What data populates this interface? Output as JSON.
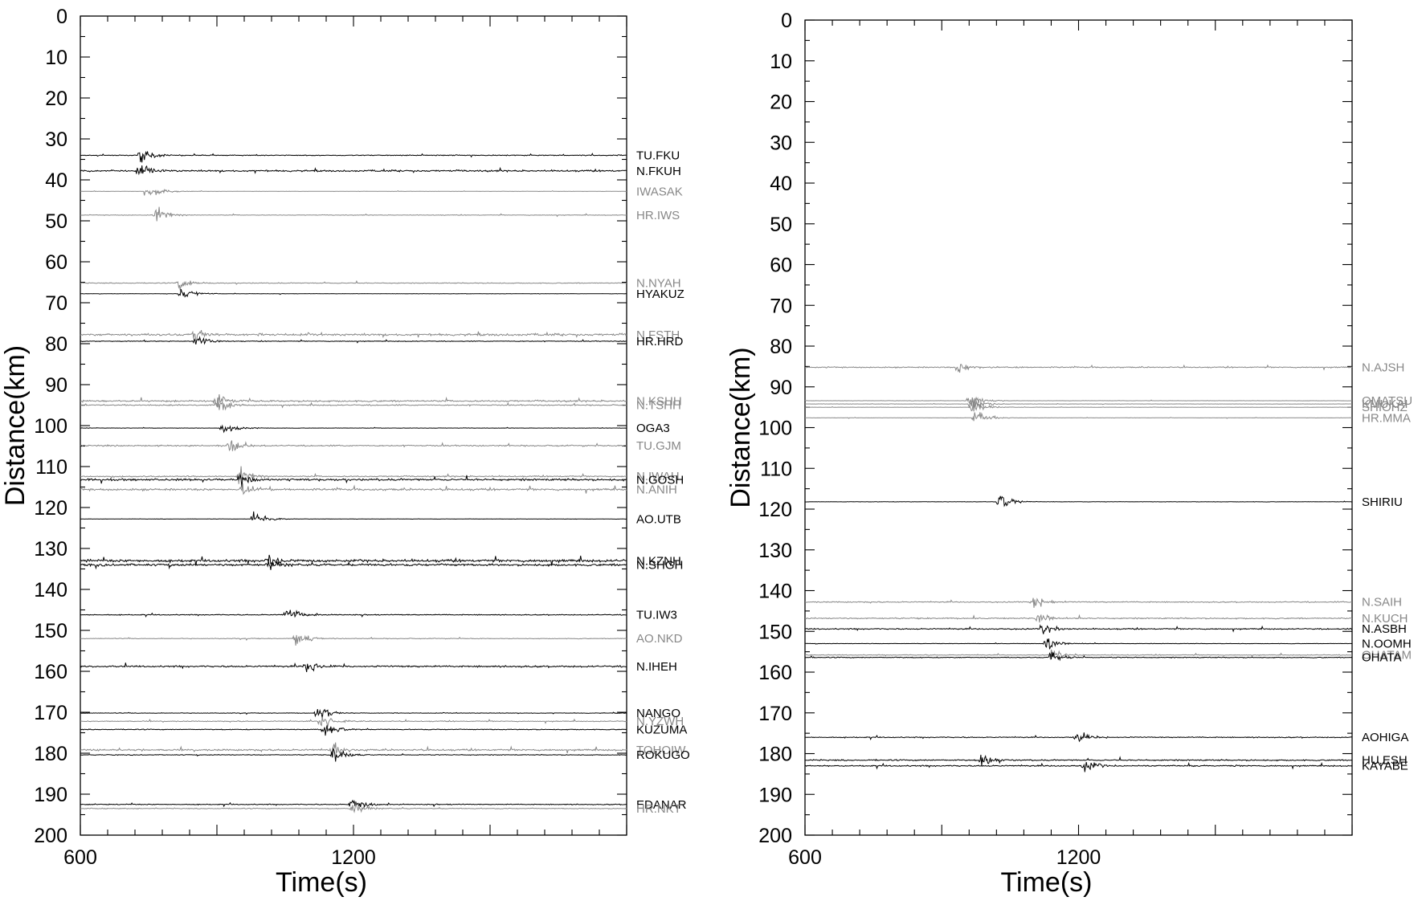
{
  "chart_data": [
    {
      "type": "line",
      "subtype": "record-section",
      "xlabel": "Time(s)",
      "ylabel": "Distance(km)",
      "xlim": [
        600,
        1800
      ],
      "ylim": [
        0,
        200
      ],
      "x_ticks": [
        600,
        1200
      ],
      "y_ticks": [
        0,
        10,
        20,
        30,
        40,
        50,
        60,
        70,
        80,
        90,
        100,
        110,
        120,
        130,
        140,
        150,
        160,
        170,
        180,
        190,
        200
      ],
      "grid": false,
      "traces": [
        {
          "name": "TU.FKU",
          "distance": 34.0,
          "color": "#000000",
          "arrival": 730,
          "noise": 0.9
        },
        {
          "name": "N.FKUH",
          "distance": 37.8,
          "color": "#000000",
          "arrival": 728,
          "noise": 1.8
        },
        {
          "name": "IWASAK",
          "distance": 42.8,
          "color": "#888888",
          "arrival": 745,
          "noise": 0.3
        },
        {
          "name": "HR.IWS",
          "distance": 48.6,
          "color": "#888888",
          "arrival": 763,
          "noise": 0.7
        },
        {
          "name": "N.NYAH",
          "distance": 65.2,
          "color": "#888888",
          "arrival": 815,
          "noise": 0.9
        },
        {
          "name": "HYAKUZ",
          "distance": 67.8,
          "color": "#000000",
          "arrival": 820,
          "noise": 0.4
        },
        {
          "name": "N.FSTH",
          "distance": 77.8,
          "color": "#888888",
          "arrival": 852,
          "noise": 2.4
        },
        {
          "name": "HR.HRD",
          "distance": 79.4,
          "color": "#000000",
          "arrival": 853,
          "noise": 0.8
        },
        {
          "name": "N.KSHH",
          "distance": 94.0,
          "color": "#888888",
          "arrival": 895,
          "noise": 1.8
        },
        {
          "name": "N.TSHH",
          "distance": 95.0,
          "color": "#888888",
          "arrival": 900,
          "noise": 1.2
        },
        {
          "name": "OGA3",
          "distance": 100.6,
          "color": "#000000",
          "arrival": 912,
          "noise": 0.4
        },
        {
          "name": "TU.GJM",
          "distance": 104.9,
          "color": "#888888",
          "arrival": 925,
          "noise": 1.4
        },
        {
          "name": "N.IWAH",
          "distance": 112.4,
          "color": "#888888",
          "arrival": 948,
          "noise": 1.4
        },
        {
          "name": "N.GOSH",
          "distance": 113.2,
          "color": "#000000",
          "arrival": 950,
          "noise": 2.2
        },
        {
          "name": "N.ANIH",
          "distance": 115.6,
          "color": "#888888",
          "arrival": 955,
          "noise": 2.2
        },
        {
          "name": "AO.UTB",
          "distance": 122.8,
          "color": "#000000",
          "arrival": 980,
          "noise": 0.4
        },
        {
          "name": "N.KZNH",
          "distance": 133.0,
          "color": "#000000",
          "arrival": 1010,
          "noise": 2.8
        },
        {
          "name": "N.SHGH",
          "distance": 134.0,
          "color": "#000000",
          "arrival": 1012,
          "noise": 2.4
        },
        {
          "name": "TU.IW3",
          "distance": 146.2,
          "color": "#000000",
          "arrival": 1052,
          "noise": 1.0
        },
        {
          "name": "AO.NKD",
          "distance": 152.0,
          "color": "#888888",
          "arrival": 1073,
          "noise": 0.8
        },
        {
          "name": "N.IHEH",
          "distance": 158.8,
          "color": "#000000",
          "arrival": 1095,
          "noise": 1.8
        },
        {
          "name": "NANGO",
          "distance": 170.2,
          "color": "#000000",
          "arrival": 1120,
          "noise": 0.6
        },
        {
          "name": "N.YZWH",
          "distance": 172.2,
          "color": "#888888",
          "arrival": 1128,
          "noise": 1.0
        },
        {
          "name": "KUZUMA",
          "distance": 174.2,
          "color": "#000000",
          "arrival": 1135,
          "noise": 0.9
        },
        {
          "name": "TOHOIW",
          "distance": 179.2,
          "color": "#888888",
          "arrival": 1150,
          "noise": 1.8
        },
        {
          "name": "ROKUGO",
          "distance": 180.4,
          "color": "#000000",
          "arrival": 1155,
          "noise": 0.8
        },
        {
          "name": "EDANAR",
          "distance": 192.5,
          "color": "#000000",
          "arrival": 1195,
          "noise": 1.0
        },
        {
          "name": "HR.NKT",
          "distance": 193.5,
          "color": "#888888",
          "arrival": 1198,
          "noise": 1.0
        }
      ]
    },
    {
      "type": "line",
      "subtype": "record-section",
      "xlabel": "Time(s)",
      "ylabel": "Distance(km)",
      "xlim": [
        600,
        1800
      ],
      "ylim": [
        0,
        200
      ],
      "x_ticks": [
        600,
        1200
      ],
      "y_ticks": [
        0,
        10,
        20,
        30,
        40,
        50,
        60,
        70,
        80,
        90,
        100,
        110,
        120,
        130,
        140,
        150,
        160,
        170,
        180,
        190,
        200
      ],
      "grid": false,
      "traces": [
        {
          "name": "N.AJSH",
          "distance": 85.2,
          "color": "#888888",
          "arrival": 935,
          "noise": 1.2
        },
        {
          "name": "OMATSU",
          "distance": 93.4,
          "color": "#888888",
          "arrival": 960,
          "noise": 0.3
        },
        {
          "name": "KMUKAI",
          "distance": 94.2,
          "color": "#888888",
          "arrival": 962,
          "noise": 0.3
        },
        {
          "name": "SHIOHZ",
          "distance": 95.0,
          "color": "#888888",
          "arrival": 965,
          "noise": 0.3
        },
        {
          "name": "HR.MMA",
          "distance": 97.6,
          "color": "#888888",
          "arrival": 972,
          "noise": 0.3
        },
        {
          "name": "SHIRIU",
          "distance": 118.2,
          "color": "#000000",
          "arrival": 1025,
          "noise": 0.4
        },
        {
          "name": "N.SAIH",
          "distance": 142.8,
          "color": "#888888",
          "arrival": 1098,
          "noise": 1.2
        },
        {
          "name": "N.KUCH",
          "distance": 146.8,
          "color": "#888888",
          "arrival": 1110,
          "noise": 1.4
        },
        {
          "name": "N.ASBH",
          "distance": 149.4,
          "color": "#000000",
          "arrival": 1118,
          "noise": 1.3
        },
        {
          "name": "N.OOMH",
          "distance": 153.0,
          "color": "#000000",
          "arrival": 1128,
          "noise": 0.4
        },
        {
          "name": "OHATAM",
          "distance": 155.8,
          "color": "#888888",
          "arrival": 1135,
          "noise": 0.9
        },
        {
          "name": "OHATA",
          "distance": 156.4,
          "color": "#000000",
          "arrival": 1138,
          "noise": 1.0
        },
        {
          "name": "AOHIGA",
          "distance": 176.0,
          "color": "#000000",
          "arrival": 1192,
          "noise": 1.1
        },
        {
          "name": "HU.ESH",
          "distance": 181.6,
          "color": "#000000",
          "arrival": 985,
          "noise": 1.4
        },
        {
          "name": "KAYABE",
          "distance": 183.0,
          "color": "#000000",
          "arrival": 1212,
          "noise": 1.4
        }
      ]
    }
  ]
}
